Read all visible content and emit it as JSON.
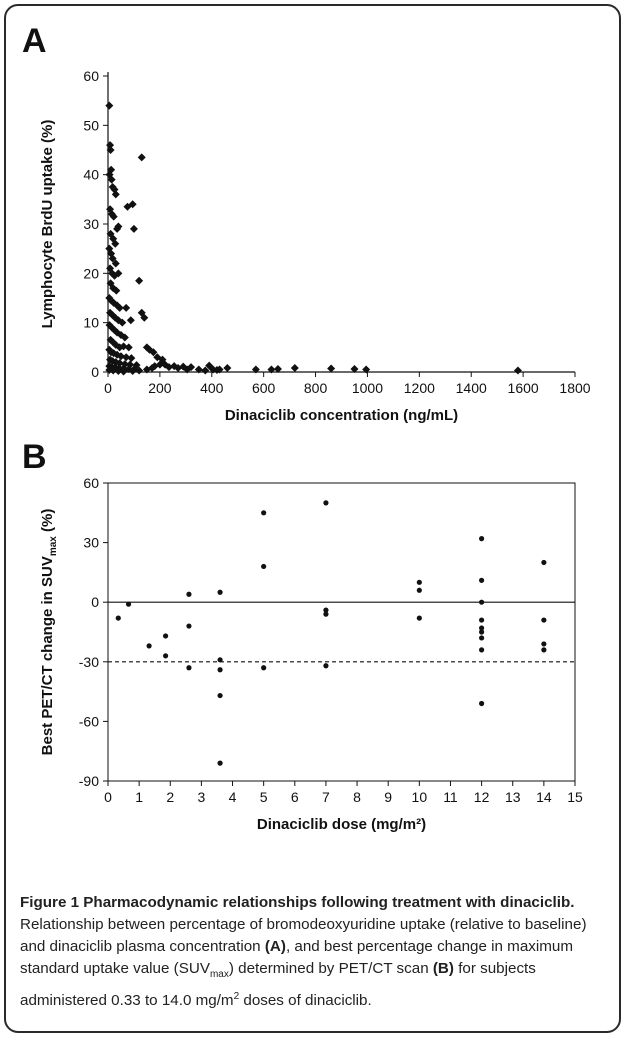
{
  "panels": [
    {
      "letter": "A",
      "chart_data": {
        "type": "scatter",
        "xlabel": "Dinaciclib concentration (ng/mL)",
        "ylabel": "Lymphocyte BrdU uptake (%)",
        "xlim": [
          0,
          1800
        ],
        "ylim": [
          0,
          60
        ],
        "xticks": [
          0,
          200,
          400,
          600,
          800,
          1000,
          1200,
          1400,
          1600,
          1800
        ],
        "yticks": [
          0,
          10,
          20,
          30,
          40,
          50,
          60
        ],
        "marker": "diamond",
        "points": [
          [
            5,
            54
          ],
          [
            8,
            46
          ],
          [
            10,
            45
          ],
          [
            12,
            41
          ],
          [
            6,
            40
          ],
          [
            14,
            39
          ],
          [
            18,
            37.5
          ],
          [
            25,
            37
          ],
          [
            30,
            36
          ],
          [
            8,
            33
          ],
          [
            15,
            32
          ],
          [
            22,
            31.5
          ],
          [
            35,
            29
          ],
          [
            40,
            29.5
          ],
          [
            10,
            28
          ],
          [
            20,
            27
          ],
          [
            28,
            26
          ],
          [
            5,
            25
          ],
          [
            12,
            24
          ],
          [
            18,
            23
          ],
          [
            30,
            22
          ],
          [
            8,
            21
          ],
          [
            16,
            20
          ],
          [
            25,
            19.5
          ],
          [
            40,
            20
          ],
          [
            10,
            18
          ],
          [
            20,
            17
          ],
          [
            32,
            16.5
          ],
          [
            5,
            15
          ],
          [
            12,
            14.5
          ],
          [
            22,
            14
          ],
          [
            35,
            13.5
          ],
          [
            45,
            13
          ],
          [
            8,
            12
          ],
          [
            18,
            11.5
          ],
          [
            28,
            11
          ],
          [
            40,
            10.5
          ],
          [
            55,
            10
          ],
          [
            6,
            9.5
          ],
          [
            15,
            9
          ],
          [
            25,
            8.5
          ],
          [
            35,
            8
          ],
          [
            50,
            7.5
          ],
          [
            65,
            7
          ],
          [
            10,
            6.5
          ],
          [
            20,
            6
          ],
          [
            30,
            5.5
          ],
          [
            45,
            5
          ],
          [
            60,
            5.2
          ],
          [
            80,
            5
          ],
          [
            5,
            4.5
          ],
          [
            12,
            4
          ],
          [
            22,
            3.8
          ],
          [
            35,
            3.5
          ],
          [
            50,
            3.2
          ],
          [
            70,
            3
          ],
          [
            90,
            2.8
          ],
          [
            8,
            2.5
          ],
          [
            18,
            2.2
          ],
          [
            30,
            2
          ],
          [
            45,
            1.8
          ],
          [
            65,
            1.6
          ],
          [
            85,
            1.5
          ],
          [
            110,
            1.4
          ],
          [
            5,
            1.2
          ],
          [
            15,
            1
          ],
          [
            28,
            0.9
          ],
          [
            42,
            0.8
          ],
          [
            60,
            0.7
          ],
          [
            80,
            0.6
          ],
          [
            100,
            0.5
          ],
          [
            5,
            0.4
          ],
          [
            20,
            0.3
          ],
          [
            40,
            0.2
          ],
          [
            60,
            0.1
          ],
          [
            95,
            0.2
          ],
          [
            120,
            0.3
          ],
          [
            75,
            33.5
          ],
          [
            95,
            34
          ],
          [
            130,
            43.5
          ],
          [
            100,
            29
          ],
          [
            120,
            18.5
          ],
          [
            130,
            12
          ],
          [
            140,
            11
          ],
          [
            70,
            13
          ],
          [
            88,
            10.5
          ],
          [
            150,
            5
          ],
          [
            160,
            4.5
          ],
          [
            175,
            4
          ],
          [
            190,
            3
          ],
          [
            210,
            2.5
          ],
          [
            200,
            1.5
          ],
          [
            180,
            1.2
          ],
          [
            170,
            0.8
          ],
          [
            150,
            0.5
          ],
          [
            220,
            1.5
          ],
          [
            235,
            1
          ],
          [
            255,
            1.2
          ],
          [
            270,
            0.8
          ],
          [
            290,
            1.1
          ],
          [
            305,
            0.5
          ],
          [
            320,
            1
          ],
          [
            350,
            0.5
          ],
          [
            375,
            0.3
          ],
          [
            390,
            1.3
          ],
          [
            405,
            0.5
          ],
          [
            420,
            0.4
          ],
          [
            430,
            0.5
          ],
          [
            460,
            0.8
          ],
          [
            570,
            0.5
          ],
          [
            630,
            0.5
          ],
          [
            655,
            0.6
          ],
          [
            720,
            0.8
          ],
          [
            860,
            0.7
          ],
          [
            950,
            0.6
          ],
          [
            995,
            0.5
          ],
          [
            1580,
            0.3
          ]
        ]
      }
    },
    {
      "letter": "B",
      "chart_data": {
        "type": "scatter",
        "xlabel": "Dinaciclib dose (mg/m²)",
        "ylabel": "Best PET/CT change in SUV",
        "ylabel_sub": "max",
        "ylabel_unit": " (%)",
        "xlim": [
          0,
          15
        ],
        "ylim": [
          -90,
          60
        ],
        "xticks": [
          0,
          1,
          2,
          3,
          4,
          5,
          6,
          7,
          8,
          9,
          10,
          11,
          12,
          13,
          14,
          15
        ],
        "yticks": [
          60,
          30,
          0,
          -30,
          -60,
          -90
        ],
        "reference_lines": [
          {
            "y": 0,
            "style": "solid"
          },
          {
            "y": -30,
            "style": "dashed"
          }
        ],
        "marker": "dot",
        "points": [
          [
            0.33,
            -8
          ],
          [
            0.66,
            -1
          ],
          [
            1.32,
            -22
          ],
          [
            1.85,
            -17
          ],
          [
            1.85,
            -27
          ],
          [
            2.6,
            4
          ],
          [
            2.6,
            -12
          ],
          [
            2.6,
            -33
          ],
          [
            3.6,
            5
          ],
          [
            3.6,
            -29
          ],
          [
            3.6,
            -34
          ],
          [
            3.6,
            -47
          ],
          [
            3.6,
            -81
          ],
          [
            5.0,
            45
          ],
          [
            5.0,
            18
          ],
          [
            5.0,
            -33
          ],
          [
            7.0,
            50
          ],
          [
            7.0,
            -4
          ],
          [
            7.0,
            -6
          ],
          [
            7.0,
            -32
          ],
          [
            10.0,
            10
          ],
          [
            10.0,
            6
          ],
          [
            10.0,
            -8
          ],
          [
            12.0,
            32
          ],
          [
            12.0,
            11
          ],
          [
            12.0,
            0
          ],
          [
            12.0,
            -9
          ],
          [
            12.0,
            -13
          ],
          [
            12.0,
            -15
          ],
          [
            12.0,
            -18
          ],
          [
            12.0,
            -24
          ],
          [
            12.0,
            -51
          ],
          [
            14.0,
            20
          ],
          [
            14.0,
            -9
          ],
          [
            14.0,
            -21
          ],
          [
            14.0,
            -24
          ]
        ]
      }
    }
  ],
  "caption": {
    "figure_label": "Figure 1 Pharmacodynamic relationships following treatment with dinaciclib.",
    "text_1": " Relationship between percentage of bromodeoxyuridine uptake (relative to baseline) and dinaciclib plasma concentration ",
    "ref_a": "(A)",
    "text_2": ", and best percentage change in maximum standard uptake value (SUV",
    "sub": "max",
    "text_3": ") determined by PET/CT scan ",
    "ref_b": "(B)",
    "text_4": " for subjects administered 0.33 to 14.0 mg/m",
    "sup": "2",
    "text_5": " doses of dinaciclib."
  },
  "colors": {
    "marker": "#111111",
    "axis": "#111111",
    "frame": "#2a2a2a"
  }
}
